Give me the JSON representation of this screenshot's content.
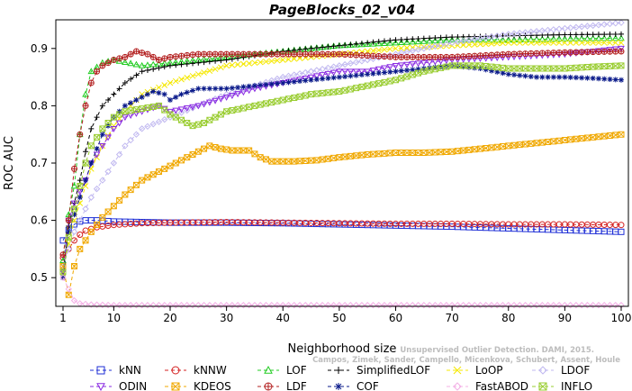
{
  "watermark": {
    "line1": "Campos, Zimek, Sander, Campello, Micenkova, Schubert, Assent, Houle",
    "line2": "Unsupervised Outlier Detection. DAMI, 2015."
  },
  "chart_data": {
    "type": "line",
    "title": "PageBlocks_02_v04",
    "xlabel": "Neighborhood size",
    "ylabel": "ROC AUC",
    "xlim": [
      1,
      100
    ],
    "ylim": [
      0.45,
      0.95
    ],
    "xticks": [
      1,
      10,
      20,
      30,
      40,
      50,
      60,
      70,
      80,
      90,
      100
    ],
    "yticks": [
      0.5,
      0.6,
      0.7,
      0.8,
      0.9
    ],
    "grid": false,
    "legend_position": "bottom",
    "series": [
      {
        "name": "kNN",
        "color": "#1f2fd6",
        "marker": "square",
        "dash": "4,3",
        "points": [
          [
            1,
            0.565
          ],
          [
            2,
            0.583
          ],
          [
            3,
            0.593
          ],
          [
            4,
            0.598
          ],
          [
            5,
            0.6
          ],
          [
            7,
            0.6
          ],
          [
            10,
            0.598
          ],
          [
            15,
            0.597
          ],
          [
            20,
            0.596
          ],
          [
            30,
            0.596
          ],
          [
            40,
            0.595
          ],
          [
            50,
            0.593
          ],
          [
            60,
            0.591
          ],
          [
            70,
            0.589
          ],
          [
            80,
            0.586
          ],
          [
            90,
            0.583
          ],
          [
            100,
            0.58
          ]
        ]
      },
      {
        "name": "kNNW",
        "color": "#d42020",
        "marker": "circle",
        "dash": "4,3",
        "points": [
          [
            1,
            0.535
          ],
          [
            2,
            0.55
          ],
          [
            3,
            0.565
          ],
          [
            4,
            0.575
          ],
          [
            5,
            0.582
          ],
          [
            7,
            0.588
          ],
          [
            10,
            0.592
          ],
          [
            15,
            0.595
          ],
          [
            20,
            0.596
          ],
          [
            30,
            0.597
          ],
          [
            40,
            0.596
          ],
          [
            50,
            0.595
          ],
          [
            60,
            0.594
          ],
          [
            70,
            0.594
          ],
          [
            80,
            0.593
          ],
          [
            90,
            0.593
          ],
          [
            100,
            0.592
          ]
        ]
      },
      {
        "name": "LOF",
        "color": "#22cc22",
        "marker": "triangle",
        "dash": "4,3",
        "points": [
          [
            1,
            0.53
          ],
          [
            2,
            0.61
          ],
          [
            3,
            0.66
          ],
          [
            4,
            0.75
          ],
          [
            5,
            0.82
          ],
          [
            6,
            0.86
          ],
          [
            8,
            0.875
          ],
          [
            10,
            0.88
          ],
          [
            15,
            0.87
          ],
          [
            20,
            0.875
          ],
          [
            25,
            0.88
          ],
          [
            30,
            0.885
          ],
          [
            40,
            0.895
          ],
          [
            50,
            0.905
          ],
          [
            60,
            0.91
          ],
          [
            70,
            0.915
          ],
          [
            80,
            0.915
          ],
          [
            90,
            0.917
          ],
          [
            100,
            0.918
          ]
        ]
      },
      {
        "name": "SimplifiedLOF",
        "color": "#000000",
        "marker": "plus",
        "dash": "4,3",
        "points": [
          [
            1,
            0.505
          ],
          [
            2,
            0.59
          ],
          [
            3,
            0.63
          ],
          [
            4,
            0.67
          ],
          [
            5,
            0.72
          ],
          [
            6,
            0.76
          ],
          [
            8,
            0.8
          ],
          [
            10,
            0.82
          ],
          [
            12,
            0.84
          ],
          [
            15,
            0.86
          ],
          [
            20,
            0.87
          ],
          [
            30,
            0.88
          ],
          [
            40,
            0.895
          ],
          [
            50,
            0.905
          ],
          [
            60,
            0.915
          ],
          [
            70,
            0.92
          ],
          [
            80,
            0.922
          ],
          [
            90,
            0.924
          ],
          [
            100,
            0.925
          ]
        ]
      },
      {
        "name": "LoOP",
        "color": "#f5e800",
        "marker": "x",
        "dash": "4,3",
        "points": [
          [
            1,
            0.51
          ],
          [
            2,
            0.56
          ],
          [
            3,
            0.6
          ],
          [
            4,
            0.63
          ],
          [
            5,
            0.66
          ],
          [
            6,
            0.69
          ],
          [
            8,
            0.73
          ],
          [
            10,
            0.765
          ],
          [
            12,
            0.79
          ],
          [
            15,
            0.82
          ],
          [
            20,
            0.84
          ],
          [
            25,
            0.855
          ],
          [
            30,
            0.87
          ],
          [
            40,
            0.88
          ],
          [
            50,
            0.89
          ],
          [
            60,
            0.9
          ],
          [
            70,
            0.905
          ],
          [
            80,
            0.91
          ],
          [
            90,
            0.91
          ],
          [
            100,
            0.91
          ]
        ]
      },
      {
        "name": "LDOF",
        "color": "#c0b8f0",
        "marker": "diamond",
        "dash": "4,3",
        "points": [
          [
            1,
            0.52
          ],
          [
            2,
            0.55
          ],
          [
            3,
            0.58
          ],
          [
            4,
            0.6
          ],
          [
            5,
            0.62
          ],
          [
            6,
            0.64
          ],
          [
            8,
            0.67
          ],
          [
            10,
            0.7
          ],
          [
            12,
            0.73
          ],
          [
            15,
            0.76
          ],
          [
            20,
            0.78
          ],
          [
            25,
            0.8
          ],
          [
            30,
            0.82
          ],
          [
            40,
            0.85
          ],
          [
            50,
            0.87
          ],
          [
            60,
            0.89
          ],
          [
            70,
            0.91
          ],
          [
            80,
            0.925
          ],
          [
            90,
            0.935
          ],
          [
            100,
            0.945
          ]
        ]
      },
      {
        "name": "ODIN",
        "color": "#8a2be2",
        "marker": "triangle-down",
        "dash": "4,3",
        "points": [
          [
            1,
            0.51
          ],
          [
            2,
            0.6
          ],
          [
            3,
            0.63
          ],
          [
            4,
            0.65
          ],
          [
            5,
            0.67
          ],
          [
            6,
            0.7
          ],
          [
            8,
            0.73
          ],
          [
            10,
            0.76
          ],
          [
            12,
            0.78
          ],
          [
            15,
            0.79
          ],
          [
            18,
            0.8
          ],
          [
            20,
            0.79
          ],
          [
            25,
            0.8
          ],
          [
            30,
            0.815
          ],
          [
            35,
            0.83
          ],
          [
            40,
            0.84
          ],
          [
            45,
            0.85
          ],
          [
            50,
            0.86
          ],
          [
            55,
            0.86
          ],
          [
            60,
            0.87
          ],
          [
            65,
            0.875
          ],
          [
            70,
            0.88
          ],
          [
            80,
            0.885
          ],
          [
            90,
            0.89
          ],
          [
            100,
            0.9
          ]
        ]
      },
      {
        "name": "KDEOS",
        "color": "#f0a800",
        "marker": "square-x",
        "dash": "4,3",
        "points": [
          [
            1,
            0.52
          ],
          [
            2,
            0.47
          ],
          [
            3,
            0.52
          ],
          [
            4,
            0.55
          ],
          [
            6,
            0.58
          ],
          [
            8,
            0.605
          ],
          [
            10,
            0.625
          ],
          [
            12,
            0.645
          ],
          [
            15,
            0.67
          ],
          [
            18,
            0.685
          ],
          [
            20,
            0.695
          ],
          [
            22,
            0.705
          ],
          [
            24,
            0.715
          ],
          [
            26,
            0.725
          ],
          [
            27,
            0.73
          ],
          [
            29,
            0.725
          ],
          [
            31,
            0.722
          ],
          [
            34,
            0.722
          ],
          [
            36,
            0.71
          ],
          [
            38,
            0.703
          ],
          [
            42,
            0.703
          ],
          [
            46,
            0.705
          ],
          [
            50,
            0.71
          ],
          [
            55,
            0.715
          ],
          [
            60,
            0.718
          ],
          [
            65,
            0.718
          ],
          [
            70,
            0.72
          ],
          [
            75,
            0.725
          ],
          [
            80,
            0.73
          ],
          [
            85,
            0.735
          ],
          [
            90,
            0.74
          ],
          [
            95,
            0.745
          ],
          [
            100,
            0.75
          ]
        ]
      },
      {
        "name": "LDF",
        "color": "#b32020",
        "marker": "circle-plus",
        "dash": "4,3",
        "points": [
          [
            1,
            0.54
          ],
          [
            2,
            0.6
          ],
          [
            3,
            0.69
          ],
          [
            4,
            0.75
          ],
          [
            5,
            0.8
          ],
          [
            6,
            0.84
          ],
          [
            7,
            0.86
          ],
          [
            8,
            0.87
          ],
          [
            10,
            0.88
          ],
          [
            12,
            0.885
          ],
          [
            13,
            0.89
          ],
          [
            14,
            0.895
          ],
          [
            16,
            0.89
          ],
          [
            18,
            0.88
          ],
          [
            20,
            0.885
          ],
          [
            25,
            0.89
          ],
          [
            30,
            0.89
          ],
          [
            40,
            0.89
          ],
          [
            50,
            0.89
          ],
          [
            60,
            0.885
          ],
          [
            70,
            0.885
          ],
          [
            80,
            0.89
          ],
          [
            90,
            0.893
          ],
          [
            100,
            0.895
          ]
        ]
      },
      {
        "name": "COF",
        "color": "#0a1a8a",
        "marker": "asterisk",
        "dash": "4,3",
        "points": [
          [
            1,
            0.5
          ],
          [
            2,
            0.58
          ],
          [
            3,
            0.61
          ],
          [
            4,
            0.64
          ],
          [
            5,
            0.67
          ],
          [
            6,
            0.7
          ],
          [
            8,
            0.75
          ],
          [
            10,
            0.78
          ],
          [
            12,
            0.8
          ],
          [
            15,
            0.815
          ],
          [
            17,
            0.825
          ],
          [
            19,
            0.82
          ],
          [
            20,
            0.81
          ],
          [
            22,
            0.82
          ],
          [
            25,
            0.83
          ],
          [
            30,
            0.83
          ],
          [
            35,
            0.835
          ],
          [
            40,
            0.84
          ],
          [
            45,
            0.845
          ],
          [
            50,
            0.85
          ],
          [
            55,
            0.855
          ],
          [
            60,
            0.86
          ],
          [
            65,
            0.865
          ],
          [
            70,
            0.87
          ],
          [
            75,
            0.865
          ],
          [
            80,
            0.855
          ],
          [
            85,
            0.85
          ],
          [
            90,
            0.85
          ],
          [
            95,
            0.848
          ],
          [
            100,
            0.845
          ]
        ]
      },
      {
        "name": "FastABOD",
        "color": "#f4b0e6",
        "marker": "diamond",
        "dash": "4,3",
        "points": [
          [
            1,
            0.5
          ],
          [
            2,
            0.48
          ],
          [
            3,
            0.46
          ],
          [
            4,
            0.455
          ],
          [
            6,
            0.453
          ],
          [
            10,
            0.452
          ],
          [
            20,
            0.452
          ],
          [
            40,
            0.452
          ],
          [
            60,
            0.452
          ],
          [
            80,
            0.452
          ],
          [
            100,
            0.452
          ]
        ]
      },
      {
        "name": "INFLO",
        "color": "#9acd32",
        "marker": "square-x",
        "dash": "4,3",
        "points": [
          [
            1,
            0.51
          ],
          [
            2,
            0.57
          ],
          [
            3,
            0.62
          ],
          [
            4,
            0.66
          ],
          [
            5,
            0.7
          ],
          [
            6,
            0.73
          ],
          [
            8,
            0.76
          ],
          [
            10,
            0.78
          ],
          [
            12,
            0.79
          ],
          [
            15,
            0.795
          ],
          [
            18,
            0.8
          ],
          [
            20,
            0.785
          ],
          [
            22,
            0.775
          ],
          [
            24,
            0.765
          ],
          [
            26,
            0.77
          ],
          [
            28,
            0.78
          ],
          [
            30,
            0.79
          ],
          [
            35,
            0.8
          ],
          [
            40,
            0.81
          ],
          [
            45,
            0.82
          ],
          [
            50,
            0.825
          ],
          [
            55,
            0.835
          ],
          [
            60,
            0.845
          ],
          [
            65,
            0.86
          ],
          [
            70,
            0.87
          ],
          [
            75,
            0.87
          ],
          [
            80,
            0.865
          ],
          [
            85,
            0.865
          ],
          [
            90,
            0.865
          ],
          [
            95,
            0.868
          ],
          [
            100,
            0.87
          ]
        ]
      }
    ]
  }
}
